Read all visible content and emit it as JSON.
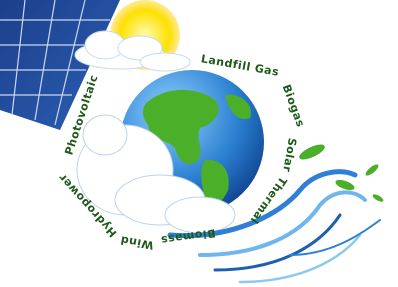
{
  "labels": [
    "Photovoltaic",
    "Landfill Gas",
    "Biogas",
    "Solar",
    "Thermal",
    "Biomass",
    "Wind",
    "Hydropower"
  ]
}
